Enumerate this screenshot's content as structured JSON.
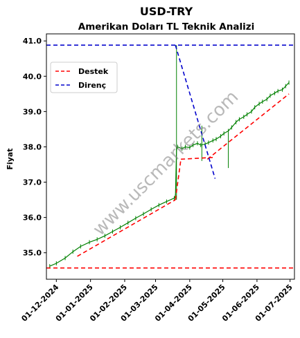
{
  "chart_data": {
    "type": "line",
    "title": "USD-TRY",
    "subtitle": "Amerikan Doları TL Teknik Analizi",
    "xlabel": "",
    "ylabel": "Fiyat",
    "x_tick_labels": [
      "01-12-2024",
      "01-01-2025",
      "01-02-2025",
      "01-03-2025",
      "01-04-2025",
      "01-05-2025",
      "01-06-2025",
      "01-07-2025"
    ],
    "y_ticks": [
      35.0,
      36.0,
      37.0,
      38.0,
      39.0,
      40.0,
      41.0
    ],
    "y_tick_labels": [
      "35.0",
      "36.0",
      "37.0",
      "38.0",
      "39.0",
      "40.0",
      "41.0"
    ],
    "xlim": [
      "2024-11-22",
      "2025-07-05"
    ],
    "ylim": [
      34.25,
      41.2
    ],
    "grid": false,
    "legend_position": "upper-left",
    "watermark": "www.uscmarkets.com",
    "colors": {
      "price": "#008000",
      "support": "#ff0000",
      "resistance": "#0000cc"
    },
    "series": [
      {
        "name": "Destek",
        "style": "dashed",
        "color": "#ff0000",
        "segments": [
          {
            "x": [
              "2024-11-22",
              "2025-07-05"
            ],
            "y": [
              34.57,
              34.57
            ]
          },
          {
            "x": [
              "2024-12-20",
              "2025-03-19"
            ],
            "y": [
              34.9,
              36.5
            ]
          },
          {
            "x": [
              "2025-03-19",
              "2025-03-24"
            ],
            "y": [
              36.5,
              37.65
            ]
          },
          {
            "x": [
              "2025-03-24",
              "2025-04-22"
            ],
            "y": [
              37.65,
              37.7
            ]
          },
          {
            "x": [
              "2025-04-17",
              "2025-06-30"
            ],
            "y": [
              37.65,
              39.5
            ]
          }
        ]
      },
      {
        "name": "Direnç",
        "style": "dashed",
        "color": "#0000cc",
        "segments": [
          {
            "x": [
              "2024-11-22",
              "2025-07-05"
            ],
            "y": [
              40.88,
              40.88
            ]
          },
          {
            "x": [
              "2025-03-19",
              "2025-04-24"
            ],
            "y": [
              40.88,
              37.1
            ]
          }
        ]
      }
    ],
    "price_series": {
      "name": "USD-TRY",
      "color": "#008000",
      "points": [
        [
          "2024-11-25",
          34.62
        ],
        [
          "2024-12-01",
          34.7
        ],
        [
          "2024-12-09",
          34.85
        ],
        [
          "2024-12-16",
          35.03
        ],
        [
          "2024-12-23",
          35.18
        ],
        [
          "2024-12-31",
          35.3
        ],
        [
          "2025-01-07",
          35.38
        ],
        [
          "2025-01-14",
          35.48
        ],
        [
          "2025-01-21",
          35.6
        ],
        [
          "2025-01-28",
          35.72
        ],
        [
          "2025-02-04",
          35.85
        ],
        [
          "2025-02-11",
          35.98
        ],
        [
          "2025-02-18",
          36.1
        ],
        [
          "2025-02-25",
          36.23
        ],
        [
          "2025-03-04",
          36.35
        ],
        [
          "2025-03-11",
          36.45
        ],
        [
          "2025-03-18",
          36.55
        ],
        [
          "2025-03-19",
          36.6
        ],
        [
          "2025-03-20",
          37.95
        ],
        [
          "2025-03-21",
          38.0
        ],
        [
          "2025-03-25",
          37.95
        ],
        [
          "2025-03-28",
          38.0
        ],
        [
          "2025-04-01",
          37.98
        ],
        [
          "2025-04-04",
          38.05
        ],
        [
          "2025-04-08",
          38.1
        ],
        [
          "2025-04-11",
          38.05
        ],
        [
          "2025-04-15",
          38.08
        ],
        [
          "2025-04-18",
          38.12
        ],
        [
          "2025-04-22",
          38.18
        ],
        [
          "2025-04-25",
          38.22
        ],
        [
          "2025-04-29",
          38.3
        ],
        [
          "2025-05-02",
          38.38
        ],
        [
          "2025-05-06",
          38.45
        ],
        [
          "2025-05-09",
          38.55
        ],
        [
          "2025-05-13",
          38.7
        ],
        [
          "2025-05-16",
          38.78
        ],
        [
          "2025-05-20",
          38.85
        ],
        [
          "2025-05-23",
          38.92
        ],
        [
          "2025-05-27",
          39.0
        ],
        [
          "2025-05-30",
          39.12
        ],
        [
          "2025-06-03",
          39.22
        ],
        [
          "2025-06-06",
          39.28
        ],
        [
          "2025-06-10",
          39.35
        ],
        [
          "2025-06-13",
          39.45
        ],
        [
          "2025-06-17",
          39.52
        ],
        [
          "2025-06-20",
          39.58
        ],
        [
          "2025-06-24",
          39.62
        ],
        [
          "2025-06-27",
          39.72
        ],
        [
          "2025-06-30",
          39.82
        ]
      ],
      "spikes": [
        [
          "2025-03-20",
          36.5,
          40.88
        ],
        [
          "2025-04-12",
          37.6,
          38.6
        ],
        [
          "2025-05-06",
          37.4,
          38.4
        ]
      ]
    }
  }
}
